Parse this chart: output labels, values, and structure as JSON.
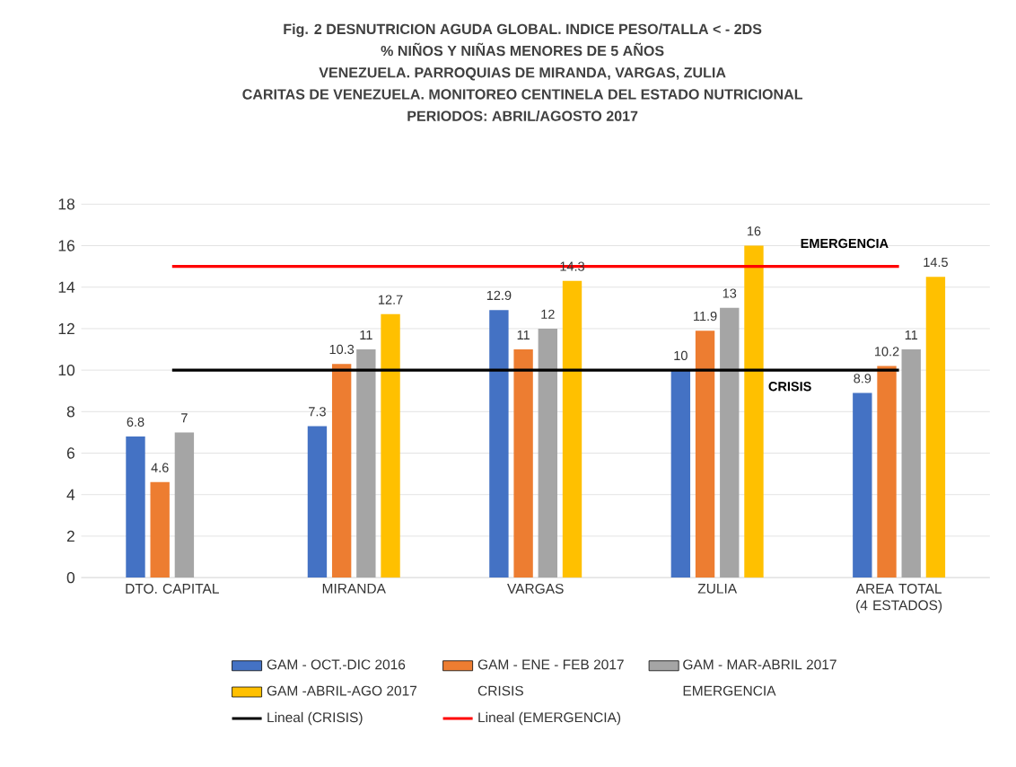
{
  "chart_data": {
    "type": "bar",
    "title": "Fig. 2 DESNUTRICION AGUDA GLOBAL. INDICE PESO/TALLA < - 2DS",
    "subtitle": "% NIÑOS Y NIÑAS MENORES DE 5 AÑOS",
    "categories": [
      "DTO. CAPITAL",
      "MIRANDA",
      "VARGAS",
      "ZULIA",
      "AREA TOTAL (4 ESTADOS)"
    ],
    "series": [
      {
        "name": "GAM - OCT.-DIC 2016",
        "color": "#4472c4",
        "values": [
          6.8,
          7.3,
          12.9,
          10,
          8.9
        ],
        "value_labels": [
          "6.8",
          "7.3",
          "12.9",
          "10",
          "8.9"
        ]
      },
      {
        "name": "GAM - ENE - FEB 2017",
        "color": "#ed7d31",
        "values": [
          4.6,
          10.3,
          11,
          11.9,
          10.2
        ],
        "value_labels": [
          "4.6",
          "10.3",
          "11",
          "11.9",
          "10.2"
        ]
      },
      {
        "name": "GAM - MAR-ABRIL 2017",
        "color": "#a5a5a5",
        "values": [
          7,
          11,
          12,
          13,
          11
        ],
        "value_labels": [
          "7",
          "11",
          "12",
          "13",
          "11"
        ]
      },
      {
        "name": "GAM -ABRIL-AGO 2017",
        "color": "#ffc000",
        "values": [
          null,
          12.7,
          14.3,
          16,
          14.5
        ],
        "value_labels": [
          null,
          "12.7",
          "14.3",
          "16",
          "14.5"
        ]
      },
      {
        "name": "Lineal (CRISIS)",
        "type": "line",
        "color": "#000000",
        "values": [
          10,
          10,
          10,
          10,
          10
        ]
      },
      {
        "name": "Lineal (EMERGENCIA)",
        "type": "line",
        "color": "#ff0000",
        "values": [
          15,
          15,
          15,
          15,
          15
        ]
      }
    ],
    "annotations": [
      "VENEZUELA. PARROQUIAS DE MIRANDA, VARGAS, ZULIA",
      "CARITAS DE VENEZUELA. MONITOREO CENTINELA DEL ESTADO NUTRICIONAL",
      "PERIODOS: ABRIL/AGOSTO 2017",
      "CRISIS",
      "EMERGENCIA",
      "CRISIS",
      "EMERGENCIA"
    ],
    "ylim": [
      0,
      18
    ],
    "yticks": [
      0,
      2,
      4,
      6,
      8,
      10,
      12,
      14,
      16,
      18
    ],
    "grid": "y",
    "legend": "bottom"
  }
}
